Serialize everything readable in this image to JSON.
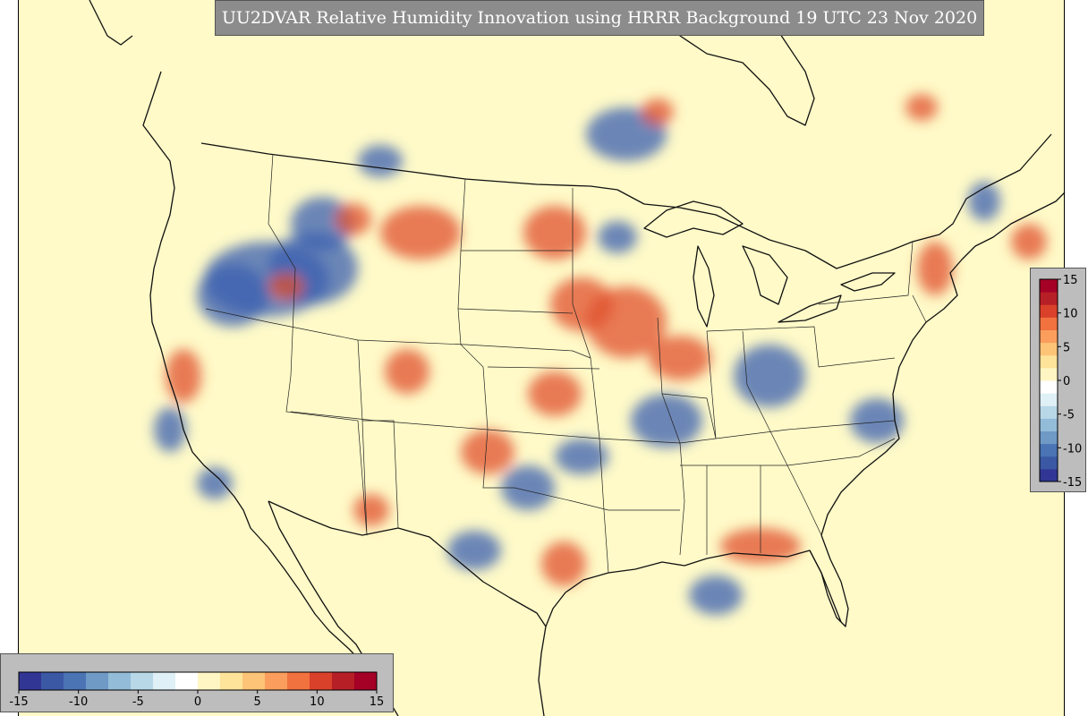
{
  "title": "UU2DVAR Relative Humidity Innovation using HRRR Background 19 UTC 23 Nov 2020",
  "colorbar": {
    "ticks": [
      "-15",
      "-10",
      "-5",
      "0",
      "5",
      "10",
      "15"
    ],
    "values": [
      -15,
      -10,
      -5,
      0,
      5,
      10,
      15
    ],
    "range": [
      -15,
      15
    ],
    "colors": [
      "#313695",
      "#3b58a5",
      "#4a74b4",
      "#6f9ac6",
      "#93bcd9",
      "#b8d8e8",
      "#dff0f6",
      "#ffffff",
      "#fff6c4",
      "#fee39a",
      "#fdc478",
      "#fb9e5d",
      "#f1713f",
      "#da412a",
      "#b71f26",
      "#a50026"
    ]
  },
  "map": {
    "background": "#fffac8",
    "blue_blobs": [
      [
        298,
        312,
        70,
        42
      ],
      [
        350,
        300,
        50,
        40
      ],
      [
        260,
        330,
        40,
        35
      ],
      [
        360,
        250,
        35,
        30
      ],
      [
        700,
        150,
        45,
        30
      ],
      [
        745,
        470,
        40,
        30
      ],
      [
        530,
        615,
        30,
        22
      ],
      [
        590,
        545,
        30,
        25
      ],
      [
        800,
        665,
        30,
        22
      ],
      [
        860,
        420,
        40,
        35
      ],
      [
        190,
        480,
        18,
        25
      ],
      [
        240,
        540,
        20,
        18
      ],
      [
        690,
        265,
        22,
        18
      ],
      [
        1100,
        225,
        18,
        22
      ],
      [
        425,
        180,
        25,
        18
      ],
      [
        650,
        510,
        30,
        20
      ],
      [
        980,
        470,
        30,
        25
      ]
    ],
    "red_blobs": [
      [
        700,
        360,
        45,
        40
      ],
      [
        650,
        340,
        35,
        30
      ],
      [
        760,
        400,
        35,
        25
      ],
      [
        620,
        260,
        35,
        30
      ],
      [
        470,
        260,
        45,
        30
      ],
      [
        545,
        505,
        30,
        25
      ],
      [
        630,
        630,
        25,
        25
      ],
      [
        415,
        570,
        20,
        18
      ],
      [
        455,
        415,
        25,
        25
      ],
      [
        395,
        245,
        20,
        18
      ],
      [
        620,
        440,
        30,
        25
      ],
      [
        1045,
        300,
        20,
        30
      ],
      [
        320,
        320,
        20,
        15
      ],
      [
        205,
        420,
        20,
        30
      ],
      [
        850,
        610,
        45,
        20
      ],
      [
        735,
        125,
        18,
        15
      ],
      [
        1030,
        120,
        18,
        15
      ],
      [
        1150,
        270,
        20,
        20
      ]
    ]
  }
}
